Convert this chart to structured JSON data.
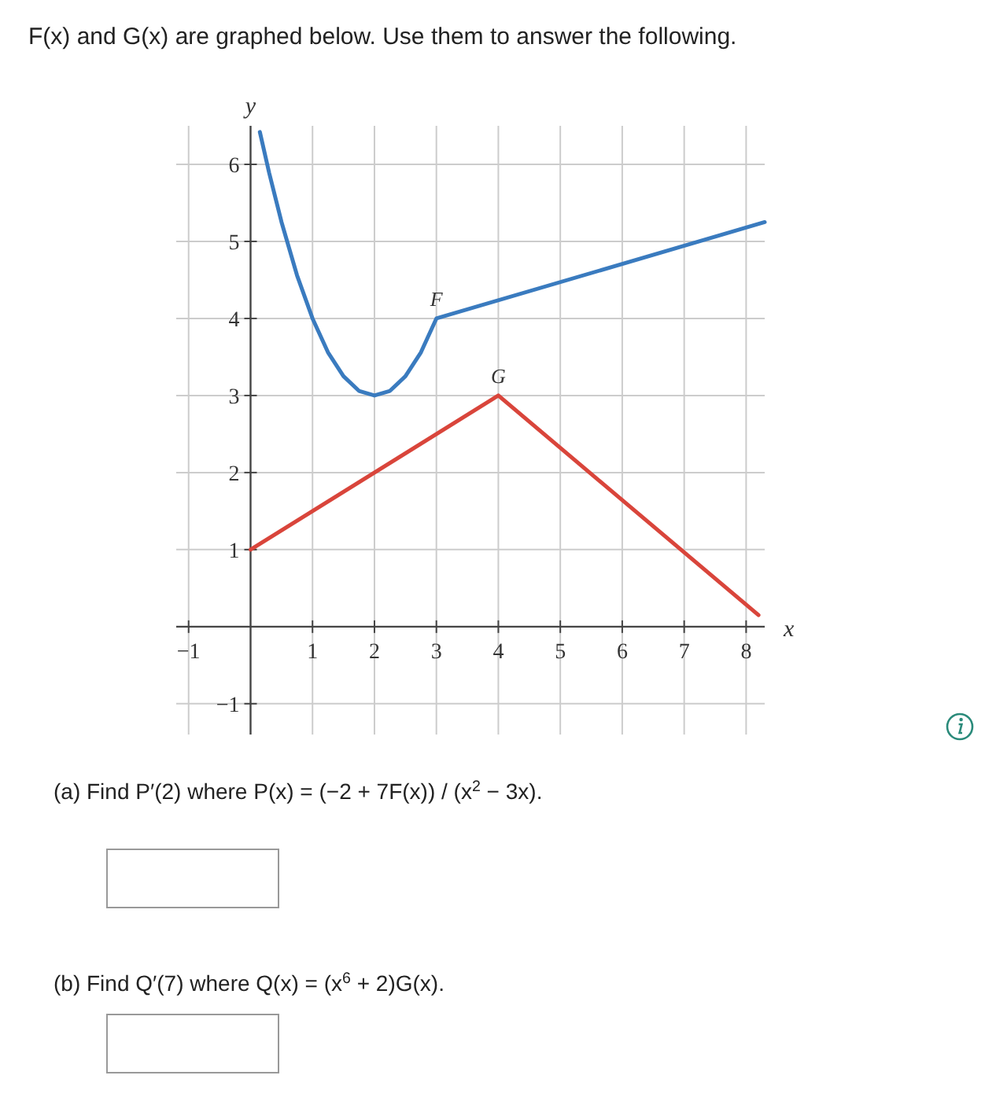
{
  "chart_data": {
    "type": "line",
    "title": "F(x) and G(x) are graphed below. Use them to answer the following.",
    "xlabel": "x",
    "ylabel": "y",
    "xlim": [
      -1.2,
      8.3
    ],
    "ylim": [
      -1.4,
      6.5
    ],
    "xticks": [
      -1,
      1,
      2,
      3,
      4,
      5,
      6,
      7,
      8
    ],
    "yticks": [
      -1,
      1,
      2,
      3,
      4,
      5,
      6
    ],
    "grid": true,
    "series": [
      {
        "name": "F",
        "color": "#3a7bbf",
        "x": [
          0.15,
          0.3,
          0.5,
          0.75,
          1,
          1.25,
          1.5,
          1.75,
          2,
          2.25,
          2.5,
          2.75,
          3,
          8.3
        ],
        "values": [
          6.42,
          5.89,
          5.25,
          4.56,
          4,
          3.56,
          3.25,
          3.06,
          3,
          3.06,
          3.25,
          3.56,
          4,
          5.25
        ]
      },
      {
        "name": "G",
        "color": "#d9453b",
        "x": [
          0,
          4,
          8.2
        ],
        "values": [
          1,
          3,
          0.15
        ]
      }
    ],
    "annotations": [
      "(a) Find P′(2) where P(x) = (−2 + 7F(x)) / (x$^{2}$ − 3x).",
      "(b) Find Q′(7) where Q(x) = (x$^{6}$ + 2)G(x)."
    ]
  }
}
